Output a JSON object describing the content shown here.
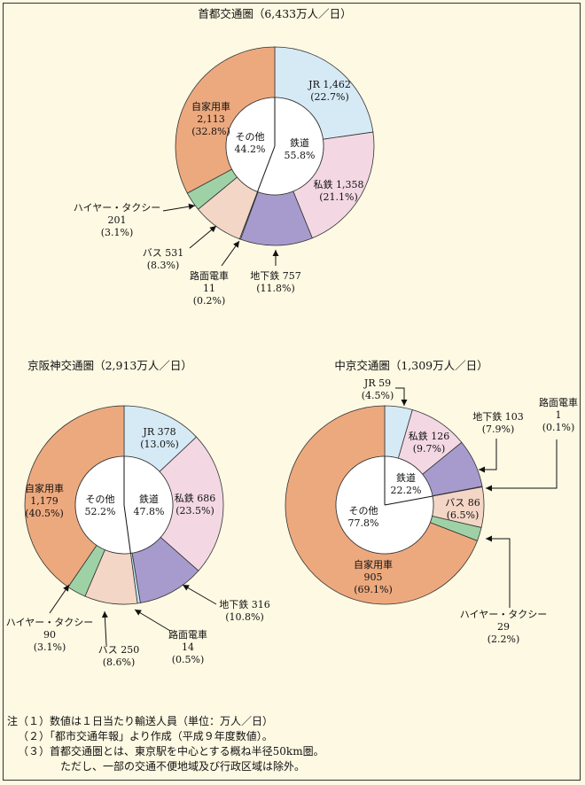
{
  "chart_data": [
    {
      "type": "pie",
      "title": "首都交通圏（6,433万人／日）",
      "inner": {
        "rail": {
          "label": "鉄道",
          "pct": "55.8%",
          "value": 55.8
        },
        "other": {
          "label": "その他",
          "pct": "44.2%",
          "value": 44.2
        }
      },
      "slices": [
        {
          "key": "jr",
          "name": "JR",
          "value": 1462,
          "value_text": "1,462",
          "pct": "(22.7%)",
          "color": "#d6eaf6"
        },
        {
          "key": "private",
          "name": "私鉄",
          "value": 1358,
          "value_text": "1,358",
          "pct": "(21.1%)",
          "color": "#f3d8e3"
        },
        {
          "key": "subway",
          "name": "地下鉄",
          "value": 757,
          "value_text": "757",
          "pct": "(11.8%)",
          "color": "#a79bce"
        },
        {
          "key": "tram",
          "name": "路面電車",
          "value": 11,
          "value_text": "11",
          "pct": "(0.2%)",
          "color": "#bfe3f2"
        },
        {
          "key": "bus",
          "name": "バス",
          "value": 531,
          "value_text": "531",
          "pct": "(8.3%)",
          "color": "#f4d6c6"
        },
        {
          "key": "taxi",
          "name": "ハイヤー・タクシー",
          "value": 201,
          "value_text": "201",
          "pct": "(3.1%)",
          "color": "#9ed2a6"
        },
        {
          "key": "car",
          "name": "自家用車",
          "value": 2113,
          "value_text": "2,113",
          "pct": "(32.8%)",
          "color": "#eda97e"
        }
      ]
    },
    {
      "type": "pie",
      "title": "京阪神交通圏（2,913万人／日）",
      "inner": {
        "rail": {
          "label": "鉄道",
          "pct": "47.8%",
          "value": 47.8
        },
        "other": {
          "label": "その他",
          "pct": "52.2%",
          "value": 52.2
        }
      },
      "slices": [
        {
          "key": "jr",
          "name": "JR",
          "value": 378,
          "value_text": "378",
          "pct": "(13.0%)",
          "color": "#d6eaf6"
        },
        {
          "key": "private",
          "name": "私鉄",
          "value": 686,
          "value_text": "686",
          "pct": "(23.5%)",
          "color": "#f3d8e3"
        },
        {
          "key": "subway",
          "name": "地下鉄",
          "value": 316,
          "value_text": "316",
          "pct": "(10.8%)",
          "color": "#a79bce"
        },
        {
          "key": "tram",
          "name": "路面電車",
          "value": 14,
          "value_text": "14",
          "pct": "(0.5%)",
          "color": "#bfe3f2"
        },
        {
          "key": "bus",
          "name": "バス",
          "value": 250,
          "value_text": "250",
          "pct": "(8.6%)",
          "color": "#f4d6c6"
        },
        {
          "key": "taxi",
          "name": "ハイヤー・タクシー",
          "value": 90,
          "value_text": "90",
          "pct": "(3.1%)",
          "color": "#9ed2a6"
        },
        {
          "key": "car",
          "name": "自家用車",
          "value": 1179,
          "value_text": "1,179",
          "pct": "(40.5%)",
          "color": "#eda97e"
        }
      ]
    },
    {
      "type": "pie",
      "title": "中京交通圏（1,309万人／日）",
      "inner": {
        "rail": {
          "label": "鉄道",
          "pct": "22.2%",
          "value": 22.2
        },
        "other": {
          "label": "その他",
          "pct": "77.8%",
          "value": 77.8
        }
      },
      "slices": [
        {
          "key": "jr",
          "name": "JR",
          "value": 59,
          "value_text": "59",
          "pct": "(4.5%)",
          "color": "#d6eaf6"
        },
        {
          "key": "private",
          "name": "私鉄",
          "value": 126,
          "value_text": "126",
          "pct": "(9.7%)",
          "color": "#f3d8e3"
        },
        {
          "key": "subway",
          "name": "地下鉄",
          "value": 103,
          "value_text": "103",
          "pct": "(7.9%)",
          "color": "#a79bce"
        },
        {
          "key": "tram",
          "name": "路面電車",
          "value": 1,
          "value_text": "1",
          "pct": "(0.1%)",
          "color": "#bfe3f2"
        },
        {
          "key": "bus",
          "name": "バス",
          "value": 86,
          "value_text": "86",
          "pct": "(6.5%)",
          "color": "#f4d6c6"
        },
        {
          "key": "taxi",
          "name": "ハイヤー・タクシー",
          "value": 29,
          "value_text": "29",
          "pct": "(2.2%)",
          "color": "#9ed2a6"
        },
        {
          "key": "car",
          "name": "自家用車",
          "value": 905,
          "value_text": "905",
          "pct": "(69.1%)",
          "color": "#eda97e"
        }
      ]
    }
  ],
  "notes": {
    "prefix": "注",
    "n1_label": "（１）",
    "n1": "数値は１日当たり輸送人員（単位：万人／日）",
    "n2_label": "（２）",
    "n2": "「都市交通年報」より作成（平成９年度数値）。",
    "n3_label": "（３）",
    "n3": "首都交通圏とは、東京駅を中心とする概ね半径50km圏。",
    "n3b": "ただし、一部の交通不便地域及び行政区域は除外。"
  }
}
